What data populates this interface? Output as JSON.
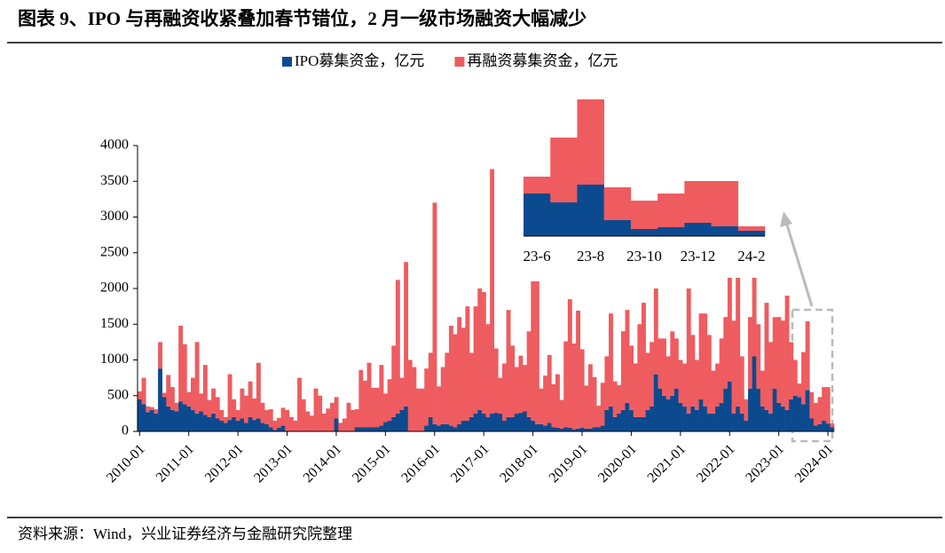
{
  "chart_data": [
    {
      "type": "bar",
      "stacked": true,
      "title": "图表 9、IPO 与再融资收紧叠加春节错位，2 月一级市场融资大幅减少",
      "source": "资料来源：Wind，兴业证券经济与金融研究院整理",
      "categories": [
        "2010-01",
        null,
        null,
        null,
        null,
        null,
        null,
        null,
        null,
        null,
        null,
        null,
        "2011-01",
        null,
        null,
        null,
        null,
        null,
        null,
        null,
        null,
        null,
        null,
        null,
        "2012-01",
        null,
        null,
        null,
        null,
        null,
        null,
        null,
        null,
        null,
        null,
        null,
        "2013-01",
        null,
        null,
        null,
        null,
        null,
        null,
        null,
        null,
        null,
        null,
        null,
        "2014-01",
        null,
        null,
        null,
        null,
        null,
        null,
        null,
        null,
        null,
        null,
        null,
        "2015-01",
        null,
        null,
        null,
        null,
        null,
        null,
        null,
        null,
        null,
        null,
        null,
        "2016-01",
        null,
        null,
        null,
        null,
        null,
        null,
        null,
        null,
        null,
        null,
        null,
        "2017-01",
        null,
        null,
        null,
        null,
        null,
        null,
        null,
        null,
        null,
        null,
        null,
        "2018-01",
        null,
        null,
        null,
        null,
        null,
        null,
        null,
        null,
        null,
        null,
        null,
        "2019-01",
        null,
        null,
        null,
        null,
        null,
        null,
        null,
        null,
        null,
        null,
        null,
        "2020-01",
        null,
        null,
        null,
        null,
        null,
        null,
        null,
        null,
        null,
        null,
        null,
        "2021-01",
        null,
        null,
        null,
        null,
        null,
        null,
        null,
        null,
        null,
        null,
        null,
        "2022-01",
        null,
        null,
        null,
        null,
        null,
        null,
        null,
        null,
        null,
        null,
        null,
        "2023-01",
        null,
        null,
        null,
        null,
        null,
        null,
        null,
        null,
        null,
        null,
        null,
        "2024-01",
        null
      ],
      "series": [
        {
          "name": "IPO募集资金，亿元",
          "color": "#0b4a8f",
          "values": [
            450,
            380,
            270,
            300,
            250,
            880,
            480,
            350,
            300,
            280,
            420,
            380,
            350,
            300,
            250,
            280,
            230,
            200,
            250,
            180,
            150,
            120,
            160,
            200,
            150,
            180,
            120,
            200,
            160,
            180,
            120,
            100,
            60,
            20,
            50,
            80,
            0,
            0,
            0,
            0,
            0,
            0,
            0,
            0,
            0,
            0,
            0,
            0,
            180,
            0,
            0,
            0,
            0,
            60,
            60,
            60,
            60,
            60,
            60,
            80,
            130,
            150,
            200,
            250,
            300,
            350,
            0,
            0,
            0,
            0,
            80,
            200,
            100,
            80,
            100,
            100,
            80,
            60,
            100,
            150,
            150,
            200,
            250,
            300,
            250,
            200,
            250,
            260,
            250,
            150,
            200,
            200,
            250,
            260,
            280,
            200,
            150,
            100,
            100,
            80,
            120,
            60,
            50,
            40,
            60,
            50,
            30,
            40,
            50,
            40,
            40,
            60,
            60,
            80,
            300,
            350,
            200,
            250,
            300,
            400,
            300,
            200,
            200,
            200,
            300,
            350,
            800,
            600,
            500,
            450,
            500,
            600,
            400,
            350,
            250,
            350,
            300,
            450,
            350,
            250,
            250,
            350,
            400,
            600,
            700,
            250,
            350,
            250,
            150,
            600,
            1050,
            600,
            350,
            300,
            250,
            600,
            400,
            350,
            300,
            450,
            500,
            480,
            380,
            580,
            180,
            80,
            100,
            150,
            110,
            60
          ]
        },
        {
          "name": "再融资募集资金，亿元",
          "color": "#ee5c60",
          "values": [
            110,
            370,
            80,
            40,
            60,
            370,
            60,
            440,
            320,
            120,
            1060,
            840,
            200,
            450,
            1000,
            250,
            700,
            240,
            350,
            300,
            150,
            80,
            640,
            250,
            150,
            420,
            380,
            500,
            300,
            780,
            280,
            200,
            250,
            130,
            140,
            250,
            300,
            200,
            150,
            750,
            450,
            280,
            220,
            600,
            500,
            250,
            320,
            400,
            300,
            120,
            180,
            400,
            300,
            250,
            800,
            650,
            900,
            550,
            550,
            850,
            400,
            580,
            1000,
            1870,
            450,
            2020,
            1000,
            900,
            600,
            600,
            800,
            900,
            3100,
            550,
            800,
            1000,
            1400,
            1300,
            1500,
            1300,
            1600,
            900,
            1500,
            1700,
            1700,
            1300,
            3420,
            900,
            500,
            800,
            1500,
            1000,
            650,
            800,
            650,
            1200,
            1950,
            2000,
            500,
            700,
            950,
            600,
            750,
            400,
            1200,
            1800,
            1200,
            1650,
            1100,
            600,
            900,
            700,
            300,
            600,
            750,
            1300,
            500,
            400,
            1100,
            1300,
            900,
            750,
            1300,
            1600,
            800,
            900,
            1200,
            700,
            800,
            600,
            900,
            700,
            600,
            600,
            1750,
            1000,
            700,
            1200,
            1300,
            1100,
            600,
            600,
            900,
            1000,
            1450,
            1300,
            1800,
            800,
            300,
            1000,
            1100,
            900,
            500,
            1500,
            1000,
            1000,
            1200,
            1200,
            1600,
            800,
            500,
            190,
            730,
            960,
            370,
            320,
            380,
            470,
            510,
            50
          ]
        }
      ],
      "ylim": [
        0,
        4000
      ],
      "yticks": [
        0,
        500,
        1000,
        1500,
        2000,
        2500,
        3000,
        3500,
        4000
      ]
    },
    {
      "type": "bar",
      "stacked": true,
      "categories": [
        "23-6",
        null,
        "23-8",
        null,
        "23-10",
        null,
        "23-12",
        null,
        "24-2"
      ],
      "series": [
        {
          "name": "IPO募集资金，亿元",
          "color": "#0b4a8f",
          "values": [
            480,
            380,
            580,
            180,
            80,
            100,
            150,
            110,
            60
          ]
        },
        {
          "name": "再融资募集资金，亿元",
          "color": "#ee5c60",
          "values": [
            190,
            730,
            960,
            370,
            320,
            380,
            470,
            510,
            50
          ]
        }
      ],
      "ylim": [
        0,
        1600
      ]
    }
  ]
}
